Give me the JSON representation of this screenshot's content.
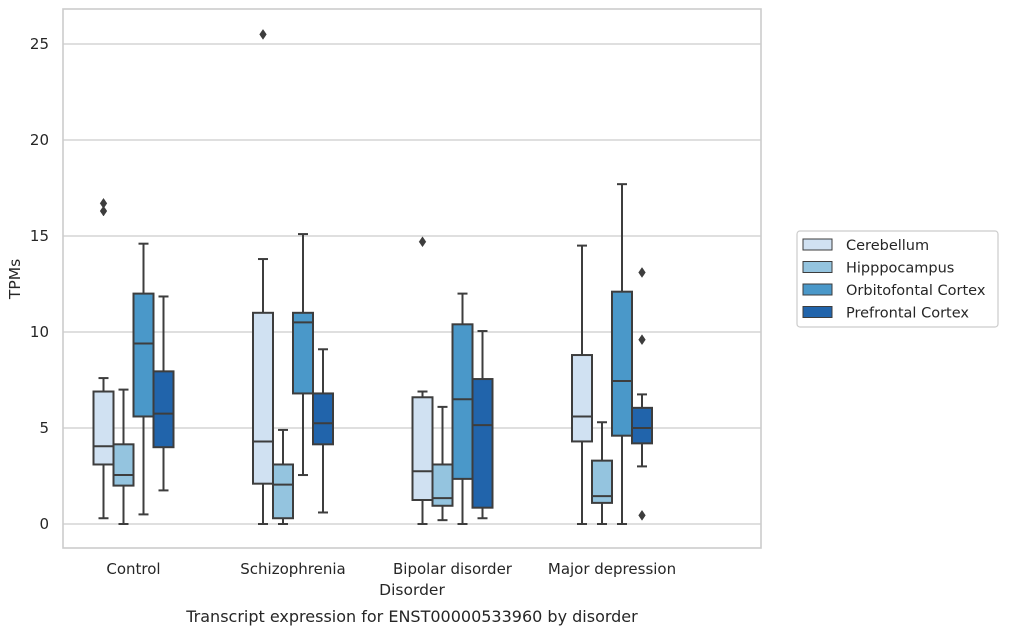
{
  "chart_data": {
    "type": "box",
    "title": "",
    "caption": "Transcript expression for ENST00000533960 by disorder",
    "xlabel": "Disorder",
    "ylabel": "TPMs",
    "ylim": [
      -1.2,
      26.8
    ],
    "yticks": [
      0,
      5,
      10,
      15,
      20,
      25
    ],
    "grid": "horizontal",
    "legend_position": "right",
    "categories": [
      "Control",
      "Schizophrenia",
      "Bipolar disorder",
      "Major depression"
    ],
    "series": [
      {
        "name": "Cerebellum",
        "color": "#d0e1f2",
        "boxes": [
          {
            "whisker_low": 0.3,
            "q1": 3.1,
            "median": 4.05,
            "q3": 6.9,
            "whisker_high": 7.6,
            "outliers": [
              16.3,
              16.7
            ]
          },
          {
            "whisker_low": 0.0,
            "q1": 2.1,
            "median": 4.3,
            "q3": 11.0,
            "whisker_high": 13.8,
            "outliers": [
              25.5
            ]
          },
          {
            "whisker_low": 0.0,
            "q1": 1.25,
            "median": 2.75,
            "q3": 6.6,
            "whisker_high": 6.9,
            "outliers": [
              14.7
            ]
          },
          {
            "whisker_low": 0.0,
            "q1": 4.3,
            "median": 5.6,
            "q3": 8.8,
            "whisker_high": 14.5,
            "outliers": []
          }
        ]
      },
      {
        "name": "Hipppocampus",
        "color": "#94c4df",
        "boxes": [
          {
            "whisker_low": 0.0,
            "q1": 2.0,
            "median": 2.55,
            "q3": 4.15,
            "whisker_high": 7.0,
            "outliers": []
          },
          {
            "whisker_low": 0.0,
            "q1": 0.3,
            "median": 2.05,
            "q3": 3.1,
            "whisker_high": 4.9,
            "outliers": []
          },
          {
            "whisker_low": 0.2,
            "q1": 0.95,
            "median": 1.35,
            "q3": 3.1,
            "whisker_high": 6.1,
            "outliers": []
          },
          {
            "whisker_low": 0.0,
            "q1": 1.1,
            "median": 1.45,
            "q3": 3.3,
            "whisker_high": 5.3,
            "outliers": []
          }
        ]
      },
      {
        "name": "Orbitofontal Cortex",
        "color": "#4a98c9",
        "boxes": [
          {
            "whisker_low": 0.5,
            "q1": 5.6,
            "median": 9.4,
            "q3": 12.0,
            "whisker_high": 14.6,
            "outliers": []
          },
          {
            "whisker_low": 2.55,
            "q1": 6.8,
            "median": 10.5,
            "q3": 11.0,
            "whisker_high": 15.1,
            "outliers": []
          },
          {
            "whisker_low": 0.0,
            "q1": 2.35,
            "median": 6.5,
            "q3": 10.4,
            "whisker_high": 12.0,
            "outliers": []
          },
          {
            "whisker_low": 0.0,
            "q1": 4.6,
            "median": 7.45,
            "q3": 12.1,
            "whisker_high": 17.7,
            "outliers": []
          }
        ]
      },
      {
        "name": "Prefrontal Cortex",
        "color": "#2164ab",
        "boxes": [
          {
            "whisker_low": 1.75,
            "q1": 4.0,
            "median": 5.75,
            "q3": 7.95,
            "whisker_high": 11.85,
            "outliers": []
          },
          {
            "whisker_low": 0.6,
            "q1": 4.15,
            "median": 5.25,
            "q3": 6.8,
            "whisker_high": 9.1,
            "outliers": []
          },
          {
            "whisker_low": 0.3,
            "q1": 0.85,
            "median": 5.15,
            "q3": 7.55,
            "whisker_high": 10.05,
            "outliers": []
          },
          {
            "whisker_low": 3.0,
            "q1": 4.2,
            "median": 5.0,
            "q3": 6.05,
            "whisker_high": 6.75,
            "outliers": [
              0.45,
              9.6,
              13.1
            ]
          }
        ]
      }
    ]
  }
}
